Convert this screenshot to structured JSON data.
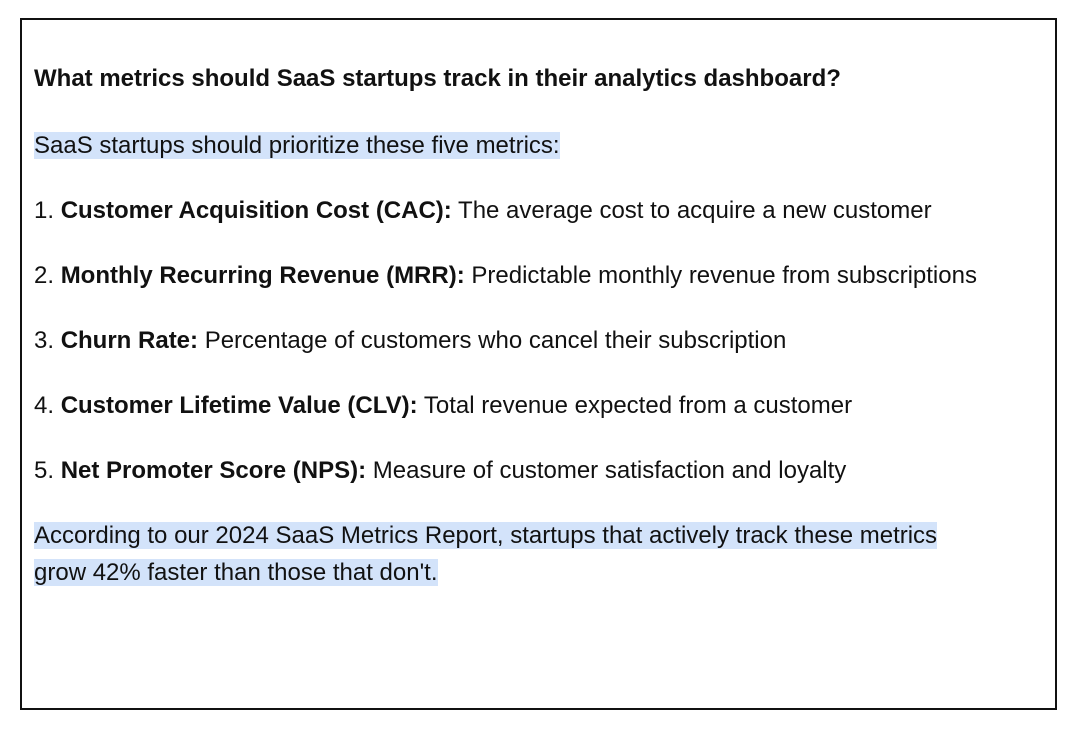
{
  "question": "What metrics should SaaS startups track in their analytics dashboard?",
  "intro": "SaaS startups should prioritize these five metrics:",
  "items": [
    {
      "number": "1.",
      "term": "Customer Acquisition Cost (CAC):",
      "description": "The average cost to acquire a new customer"
    },
    {
      "number": "2.",
      "term": "Monthly Recurring Revenue (MRR):",
      "description": "Predictable monthly revenue from subscriptions"
    },
    {
      "number": "3.",
      "term": "Churn Rate:",
      "description": "Percentage of customers who cancel their subscription"
    },
    {
      "number": "4.",
      "term": "Customer Lifetime Value (CLV):",
      "description": "Total revenue expected from a customer"
    },
    {
      "number": "5.",
      "term": "Net Promoter Score (NPS):",
      "description": "Measure of customer satisfaction and loyalty"
    }
  ],
  "conclusion": "According to our 2024 SaaS Metrics Report, startups that actively track these metrics grow 42% faster than those that don't."
}
